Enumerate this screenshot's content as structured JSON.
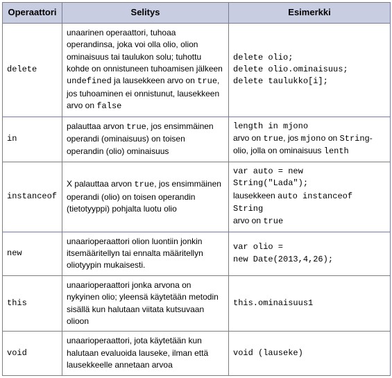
{
  "headers": {
    "op": "Operaattori",
    "desc": "Selitys",
    "ex": "Esimerkki"
  },
  "rows": {
    "delete": {
      "op": "delete",
      "d": {
        "t1": "unaarinen operaattori, tuhoaa operandinsa, joka voi olla olio, olion ominaisuus tai taulukon solu; tuhottu kohde on onnistuneen tuhoamisen jälkeen ",
        "c1": "undefined",
        "t2": " ja lausekkeen arvo on ",
        "c2": "true",
        "t3": ", jos tuhoaminen ei onnistunut, lausekkeen arvo on ",
        "c3": "false"
      },
      "e": {
        "l1": "delete olio;",
        "l2": "delete olio.ominaisuus;",
        "l3": "delete taulukko[i];"
      }
    },
    "in": {
      "op": "in",
      "d": {
        "t1": "palauttaa arvon ",
        "c1": "true",
        "t2": ", jos ensimmäinen operandi (ominaisuus) on toisen operandin (olio) ominaisuus"
      },
      "e": {
        "c1": "length in mjono",
        "t1": "arvo on ",
        "c2": "true",
        "t2": ", jos ",
        "c3": "mjono",
        "t3": " on ",
        "c4": "String",
        "t4": "-olio, jolla on ominaisuus ",
        "c5": "lenth"
      }
    },
    "instanceof": {
      "op": "instanceof",
      "d": {
        "t1": "X palauttaa arvon ",
        "c1": "true",
        "t2": ", jos ensimmäinen operandi (olio) on toisen operandin (tietotyyppi) pohjalta luotu olio"
      },
      "e": {
        "c1": "var auto = new",
        "c2": "String(\"Lada\");",
        "t1": "lausekkeen ",
        "c3": "auto instanceof String",
        "t2": "arvo on ",
        "c4": "true"
      }
    },
    "new": {
      "op": "new",
      "d": {
        "t1": "unaarioperaattori olion luontiin jonkin itsemääritellyn tai ennalta määritellyn oliotyypin mukaisesti."
      },
      "e": {
        "c1": "var olio =",
        "c2": "new Date(2013,4,26);"
      }
    },
    "this": {
      "op": "this",
      "d": {
        "t1": "unaarioperaattori jonka arvona on nykyinen olio; yleensä käytetään metodin sisällä kun halutaan viitata kutsuvaan olioon"
      },
      "e": {
        "c1": "this.ominaisuus1"
      }
    },
    "void": {
      "op": "void",
      "d": {
        "t1": "unaarioperaattori, jota käytetään kun halutaan evaluoida lauseke, ilman että lausekkeelle annetaan arvoa"
      },
      "e": {
        "c1": "void (lauseke)"
      }
    }
  }
}
